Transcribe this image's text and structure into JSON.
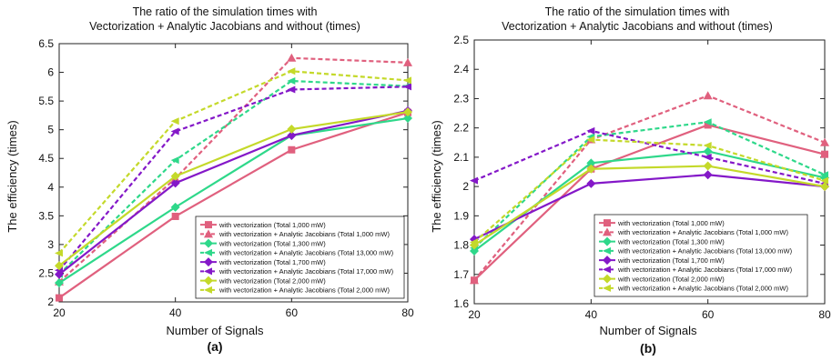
{
  "colors": {
    "pink": "#e0607e",
    "green": "#2ed88a",
    "purple": "#8418c8",
    "yellow": "#c4d92a",
    "axis": "#222222",
    "background": "#ffffff"
  },
  "chart_data": [
    {
      "type": "line",
      "panel_label": "(a)",
      "title_line1": "The ratio of the simulation times with",
      "title_line2": "Vectorization + Analytic Jacobians and without (times)",
      "xlabel": "Number of Signals",
      "ylabel": "The efficiency (times)",
      "x": [
        20,
        40,
        60,
        80
      ],
      "xticks": [
        "20",
        "40",
        "60",
        "80"
      ],
      "yticks": [
        "2",
        "2.5",
        "3",
        "3.5",
        "4",
        "4.5",
        "5",
        "5.5",
        "6",
        "6.5"
      ],
      "xlim": [
        20,
        80
      ],
      "ylim": [
        2,
        6.5
      ],
      "grid": false,
      "legend_position": "lower-right",
      "series": [
        {
          "name": "with vectorization (Total 1,000 mW)",
          "color": "pink",
          "dashed": false,
          "marker": "square",
          "values": [
            2.07,
            3.49,
            4.65,
            5.3
          ]
        },
        {
          "name": "with vectorization + Analytic Jacobians (Total 1,000 mW)",
          "color": "pink",
          "dashed": true,
          "marker": "triangle",
          "values": [
            2.35,
            4.15,
            6.25,
            6.17
          ]
        },
        {
          "name": "with vectorization (Total 1,300 mW)",
          "color": "green",
          "dashed": false,
          "marker": "diamond",
          "values": [
            2.33,
            3.65,
            4.9,
            5.2
          ]
        },
        {
          "name": "with vectorization + Analytic Jacobians (Total 13,000 mW)",
          "color": "green",
          "dashed": true,
          "marker": "left",
          "values": [
            2.48,
            4.47,
            5.85,
            5.76
          ]
        },
        {
          "name": "with vectorization (Total 1,700 mW)",
          "color": "purple",
          "dashed": false,
          "marker": "diamond",
          "values": [
            2.48,
            4.07,
            4.9,
            5.33
          ]
        },
        {
          "name": "with vectorization + Analytic Jacobians (Total 17,000 mW)",
          "color": "purple",
          "dashed": true,
          "marker": "left",
          "values": [
            2.55,
            4.97,
            5.7,
            5.75
          ]
        },
        {
          "name": "with vectorization (Total 2,000 mW)",
          "color": "yellow",
          "dashed": false,
          "marker": "diamond",
          "values": [
            2.63,
            4.19,
            5.01,
            5.31
          ]
        },
        {
          "name": "with vectorization + Analytic Jacobians (Total 2,000 mW)",
          "color": "yellow",
          "dashed": true,
          "marker": "left",
          "values": [
            2.85,
            5.15,
            6.02,
            5.86
          ]
        }
      ]
    },
    {
      "type": "line",
      "panel_label": "(b)",
      "title_line1": "The ratio of the simulation times with",
      "title_line2": "Vectorization + Analytic Jacobians and without (times)",
      "xlabel": "Number of Signals",
      "ylabel": "The efficiency (times)",
      "x": [
        20,
        40,
        60,
        80
      ],
      "xticks": [
        "20",
        "40",
        "60",
        "80"
      ],
      "yticks": [
        "1.6",
        "1.7",
        "1.8",
        "1.9",
        "2",
        "2.1",
        "2.2",
        "2.3",
        "2.4",
        "2.5"
      ],
      "xlim": [
        20,
        80
      ],
      "ylim": [
        1.6,
        2.5
      ],
      "grid": false,
      "legend_position": "lower-right",
      "series": [
        {
          "name": "with vectorization (Total 1,000 mW)",
          "color": "pink",
          "dashed": false,
          "marker": "square",
          "values": [
            1.68,
            2.06,
            2.21,
            2.11
          ]
        },
        {
          "name": "with vectorization + Analytic Jacobians (Total 1,000 mW)",
          "color": "pink",
          "dashed": true,
          "marker": "triangle",
          "values": [
            1.68,
            2.16,
            2.31,
            2.15
          ]
        },
        {
          "name": "with vectorization (Total 1,300 mW)",
          "color": "green",
          "dashed": false,
          "marker": "diamond",
          "values": [
            1.78,
            2.08,
            2.12,
            2.03
          ]
        },
        {
          "name": "with vectorization + Analytic Jacobians (Total 13,000 mW)",
          "color": "green",
          "dashed": true,
          "marker": "left",
          "values": [
            1.79,
            2.17,
            2.22,
            2.04
          ]
        },
        {
          "name": "with vectorization (Total 1,700 mW)",
          "color": "purple",
          "dashed": false,
          "marker": "diamond",
          "values": [
            1.82,
            2.01,
            2.04,
            2.0
          ]
        },
        {
          "name": "with vectorization + Analytic Jacobians (Total 17,000 mW)",
          "color": "purple",
          "dashed": true,
          "marker": "left",
          "values": [
            2.02,
            2.19,
            2.1,
            2.01
          ]
        },
        {
          "name": "with vectorization (Total 2,000 mW)",
          "color": "yellow",
          "dashed": false,
          "marker": "diamond",
          "values": [
            1.8,
            2.06,
            2.07,
            2.0
          ]
        },
        {
          "name": "with vectorization + Analytic Jacobians (Total 2,000 mW)",
          "color": "yellow",
          "dashed": true,
          "marker": "left",
          "values": [
            1.81,
            2.16,
            2.14,
            2.02
          ]
        }
      ]
    }
  ]
}
